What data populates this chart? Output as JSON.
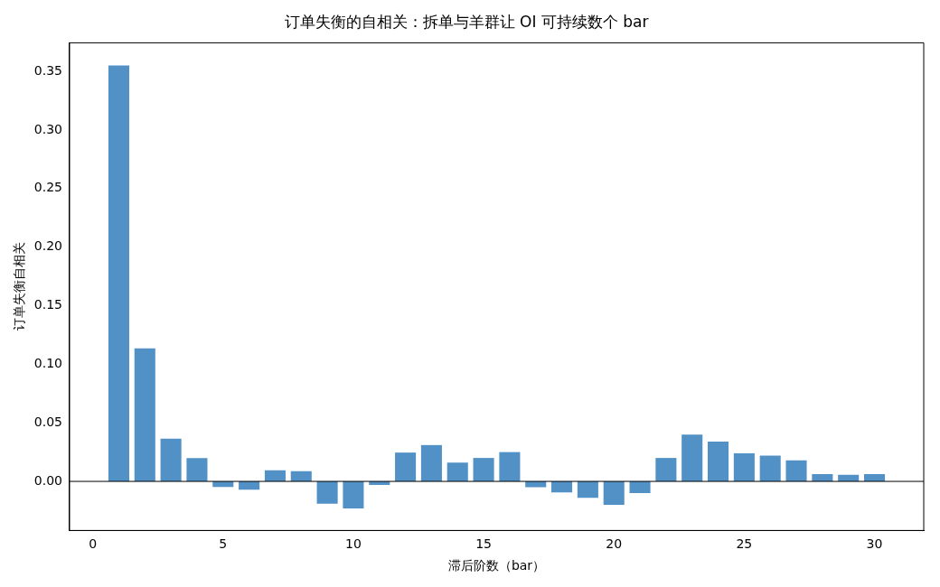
{
  "chart_data": {
    "type": "bar",
    "title": "订单失衡的自相关：拆单与羊群让 OI 可持续数个 bar",
    "xlabel": "滞后阶数（bar）",
    "ylabel": "订单失衡自相关",
    "x": [
      1,
      2,
      3,
      4,
      5,
      6,
      7,
      8,
      9,
      10,
      11,
      12,
      13,
      14,
      15,
      16,
      17,
      18,
      19,
      20,
      21,
      22,
      23,
      24,
      25,
      26,
      27,
      28,
      29,
      30
    ],
    "values": [
      0.355,
      0.1135,
      0.0365,
      0.0198,
      -0.0048,
      -0.0071,
      0.0095,
      0.0087,
      -0.019,
      -0.023,
      -0.003,
      0.0246,
      0.031,
      0.016,
      0.02,
      0.025,
      -0.005,
      -0.0095,
      -0.014,
      -0.02,
      -0.01,
      0.02,
      0.04,
      0.034,
      0.024,
      0.022,
      0.018,
      0.0063,
      0.0056,
      0.0063
    ],
    "color": "#5191c6",
    "xlim": [
      -0.89,
      31.89
    ],
    "xticks": [
      0,
      5,
      10,
      15,
      20,
      25,
      30
    ],
    "ylim": [
      -0.0419,
      0.3744
    ],
    "yticks": [
      {
        "value": 0,
        "label": "0.00"
      },
      {
        "value": 0.05,
        "label": "0.05"
      },
      {
        "value": 0.1,
        "label": "0.10"
      },
      {
        "value": 0.15,
        "label": "0.15"
      },
      {
        "value": 0.2,
        "label": "0.20"
      },
      {
        "value": 0.25,
        "label": "0.25"
      },
      {
        "value": 0.3,
        "label": "0.30"
      },
      {
        "value": 0.35,
        "label": "0.35"
      }
    ],
    "ref_lines": [
      {
        "axis": "y",
        "value": 0,
        "color": "#000000"
      }
    ],
    "grid": false,
    "legend": false
  }
}
